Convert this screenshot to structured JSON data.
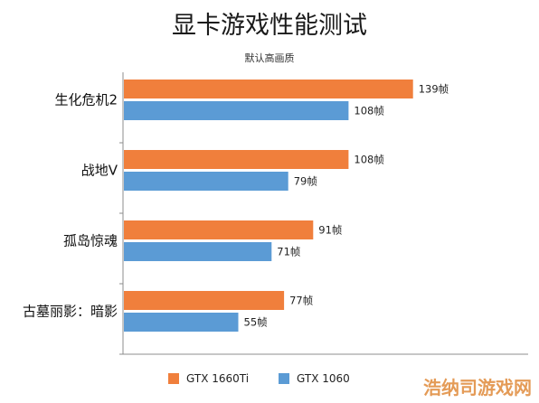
{
  "chart_data": {
    "type": "bar",
    "orientation": "horizontal",
    "title": "显卡游戏性能测试",
    "subtitle": "默认高画质",
    "categories": [
      "生化危机2",
      "战地V",
      "孤岛惊魂",
      "古墓丽影：暗影"
    ],
    "series": [
      {
        "name": "GTX 1660Ti",
        "color": "#f07f3c",
        "values": [
          139,
          108,
          91,
          77
        ],
        "labels": [
          "139帧",
          "108帧",
          "91帧",
          "77帧"
        ]
      },
      {
        "name": "GTX 1060",
        "color": "#5b9bd5",
        "values": [
          108,
          79,
          71,
          55
        ],
        "labels": [
          "108帧",
          "79帧",
          "71帧",
          "55帧"
        ]
      }
    ],
    "xlim": [
      0,
      156
    ],
    "grid": false,
    "legend_position": "bottom"
  },
  "watermark": "浩纳司游戏网"
}
